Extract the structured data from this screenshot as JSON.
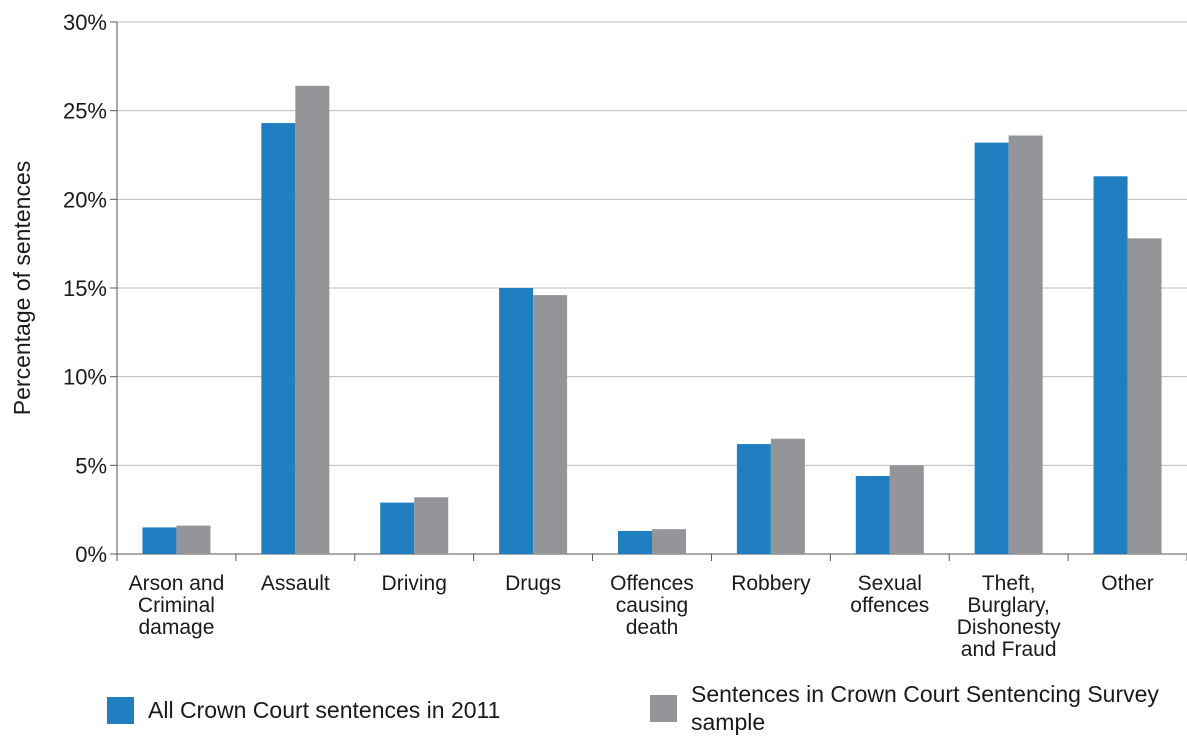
{
  "chart_data": {
    "type": "bar",
    "title": "",
    "xlabel": "",
    "ylabel": "Percentage of sentences",
    "ylim": [
      0,
      30
    ],
    "yticks": [
      "0%",
      "5%",
      "10%",
      "15%",
      "20%",
      "25%",
      "30%"
    ],
    "grid": true,
    "legend_position": "bottom",
    "categories": [
      [
        "Arson and",
        "Criminal",
        "damage"
      ],
      [
        "Assault"
      ],
      [
        "Driving"
      ],
      [
        "Drugs"
      ],
      [
        "Offences",
        "causing",
        "death"
      ],
      [
        "Robbery"
      ],
      [
        "Sexual",
        "offences"
      ],
      [
        "Theft,",
        "Burglary,",
        "Dishonesty",
        "and Fraud"
      ],
      [
        "Other"
      ]
    ],
    "series": [
      {
        "name": "All Crown Court sentences in 2011",
        "color": "#1f7fc1",
        "values": [
          1.5,
          24.3,
          2.9,
          15.0,
          1.3,
          6.2,
          4.4,
          23.2,
          21.3
        ]
      },
      {
        "name": "Sentences in Crown Court Sentencing Survey sample",
        "color": "#939598",
        "values": [
          1.6,
          26.4,
          3.2,
          14.6,
          1.4,
          6.5,
          5.0,
          23.6,
          17.8
        ]
      }
    ]
  },
  "legend": {
    "items": [
      {
        "label": "All Crown Court sentences in 2011"
      },
      {
        "label": "Sentences in Crown Court Sentencing Survey sample"
      }
    ]
  }
}
